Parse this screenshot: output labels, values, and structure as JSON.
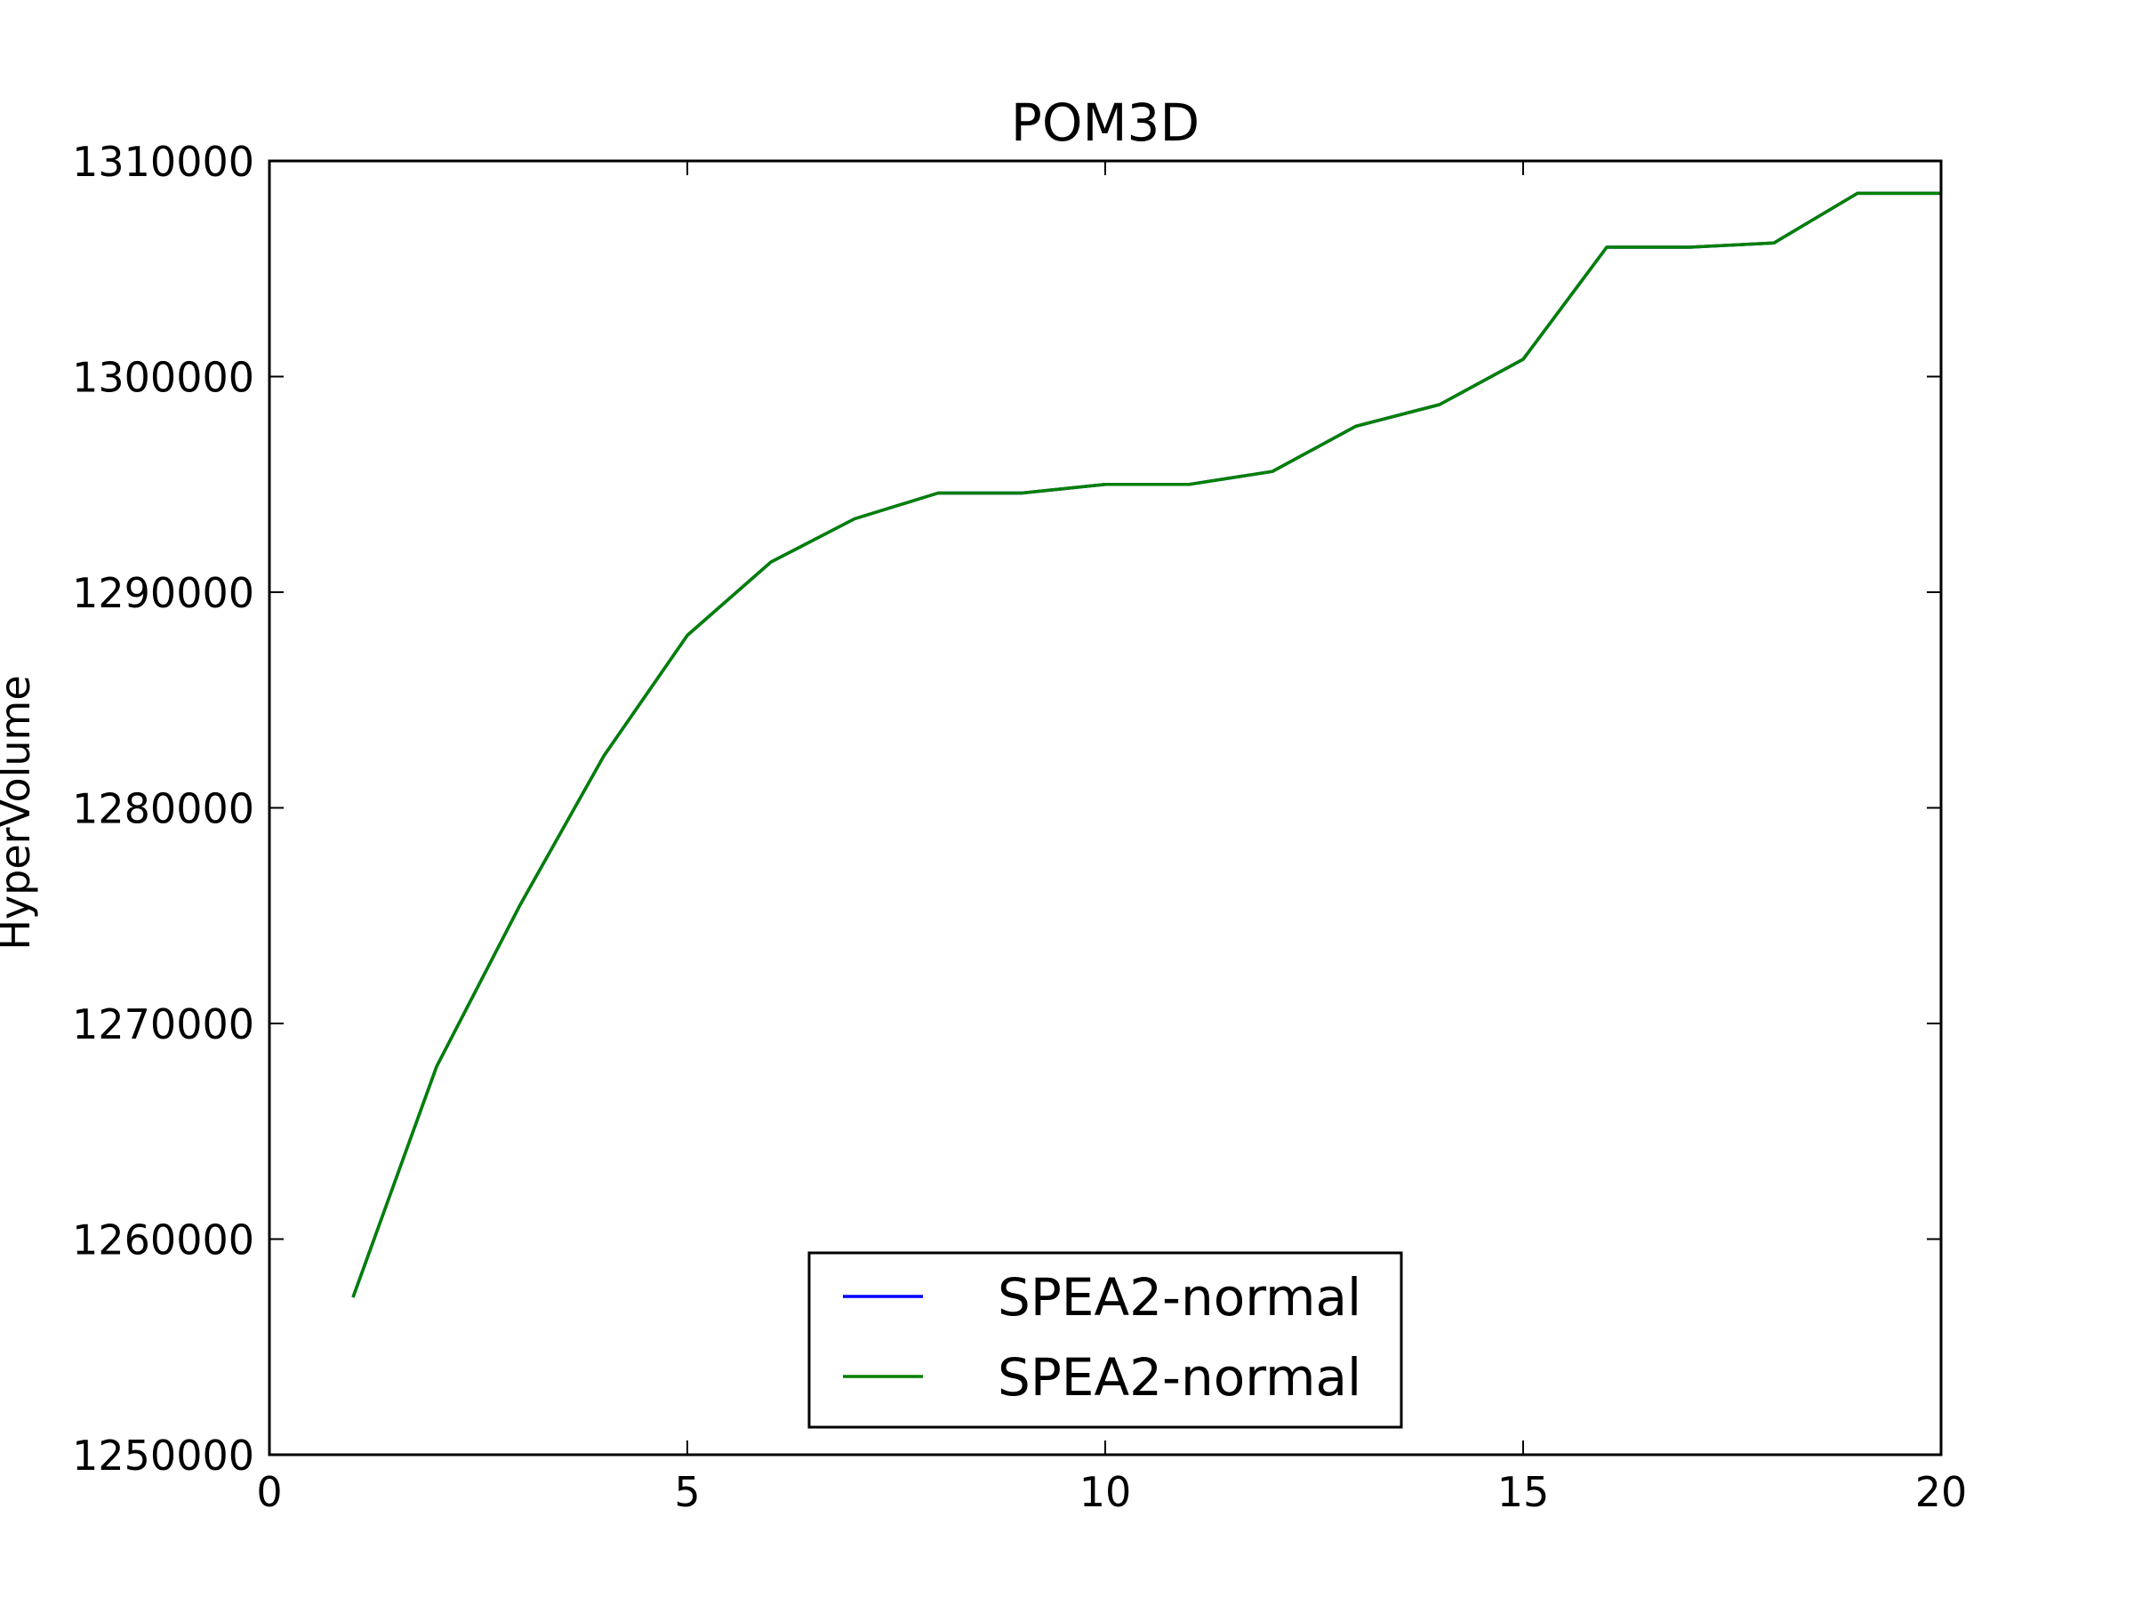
{
  "chart_data": {
    "type": "line",
    "title": "POM3D",
    "xlabel": "",
    "ylabel": "HyperVolume",
    "xlim": [
      0,
      20
    ],
    "ylim": [
      1250000,
      1310000
    ],
    "x_ticks": [
      "0",
      "5",
      "10",
      "15",
      "20"
    ],
    "y_ticks": [
      "1250000",
      "1260000",
      "1270000",
      "1280000",
      "1290000",
      "1300000",
      "1310000"
    ],
    "grid": false,
    "legend_position": "lower center",
    "series": [
      {
        "name": "SPEA2-normal",
        "color": "#0000ff",
        "x": [
          1,
          2,
          3,
          4,
          5,
          6,
          7,
          8,
          9,
          10,
          11,
          12,
          13,
          14,
          15,
          16,
          17,
          18,
          19,
          20
        ],
        "y": [
          1257300,
          1268000,
          1275500,
          1282400,
          1288000,
          1291400,
          1293400,
          1294600,
          1294600,
          1295000,
          1295000,
          1295600,
          1297700,
          1298700,
          1300800,
          1306000,
          1306000,
          1306200,
          1308500,
          1308500
        ]
      },
      {
        "name": "SPEA2-normal",
        "color": "#008000",
        "x": [
          1,
          2,
          3,
          4,
          5,
          6,
          7,
          8,
          9,
          10,
          11,
          12,
          13,
          14,
          15,
          16,
          17,
          18,
          19,
          20
        ],
        "y": [
          1257300,
          1268000,
          1275500,
          1282400,
          1288000,
          1291400,
          1293400,
          1294600,
          1294600,
          1295000,
          1295000,
          1295600,
          1297700,
          1298700,
          1300800,
          1306000,
          1306000,
          1306200,
          1308500,
          1308500
        ]
      }
    ]
  }
}
